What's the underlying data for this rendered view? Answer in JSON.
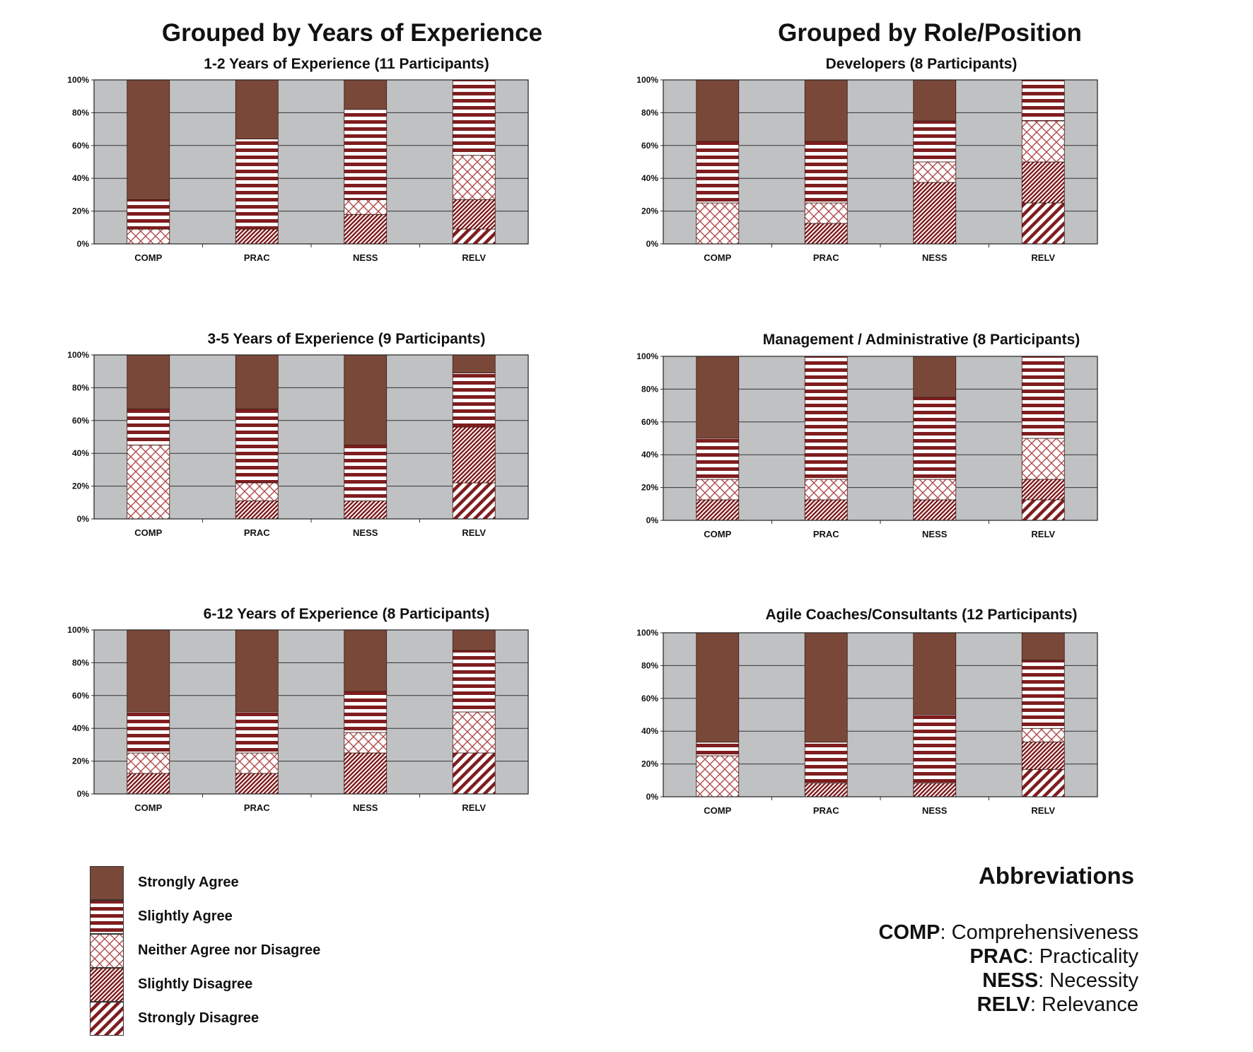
{
  "headings": {
    "left": "Grouped by Years of Experience",
    "right": "Grouped by Role/Position"
  },
  "colors": {
    "plot_bg": "#c0c1c3",
    "strongly_agree": "#7a4839",
    "pattern_dark": "#7f1d1f",
    "pattern_light": "#ffffff"
  },
  "categories": [
    "COMP",
    "PRAC",
    "NESS",
    "RELV"
  ],
  "y_ticks": [
    "0%",
    "20%",
    "40%",
    "60%",
    "80%",
    "100%"
  ],
  "legend": [
    {
      "label": "Strongly Agree",
      "key": "sa"
    },
    {
      "label": "Slightly Agree",
      "key": "slA"
    },
    {
      "label": "Neither Agree nor Disagree",
      "key": "n"
    },
    {
      "label": "Slightly Disagree",
      "key": "slD"
    },
    {
      "label": "Strongly Disagree",
      "key": "sd"
    }
  ],
  "abbreviations": {
    "title": "Abbreviations",
    "items": [
      {
        "code": "COMP",
        "meaning": ": Comprehensiveness"
      },
      {
        "code": "PRAC",
        "meaning": ": Practicality"
      },
      {
        "code": "NESS",
        "meaning": ": Necessity"
      },
      {
        "code": "RELV",
        "meaning": ": Relevance"
      }
    ]
  },
  "chart_data": [
    {
      "type": "bar",
      "stacked": true,
      "title": "1-2 Years of Experience (11 Participants)",
      "categories": [
        "COMP",
        "PRAC",
        "NESS",
        "RELV"
      ],
      "ylim": [
        0,
        100
      ],
      "grid": true,
      "series": [
        {
          "name": "Strongly Disagree",
          "values": [
            0,
            0,
            0,
            9
          ]
        },
        {
          "name": "Slightly Disagree",
          "values": [
            0,
            9,
            18,
            18
          ]
        },
        {
          "name": "Neither Agree nor Disagree",
          "values": [
            9,
            0,
            9,
            27
          ]
        },
        {
          "name": "Slightly Agree",
          "values": [
            18,
            55,
            55,
            46
          ]
        },
        {
          "name": "Strongly Agree",
          "values": [
            73,
            36,
            18,
            0
          ]
        }
      ]
    },
    {
      "type": "bar",
      "stacked": true,
      "title": "3-5 Years of Experience (9 Participants)",
      "categories": [
        "COMP",
        "PRAC",
        "NESS",
        "RELV"
      ],
      "ylim": [
        0,
        100
      ],
      "grid": true,
      "series": [
        {
          "name": "Strongly Disagree",
          "values": [
            0,
            0,
            0,
            22
          ]
        },
        {
          "name": "Slightly Disagree",
          "values": [
            0,
            11,
            11,
            34
          ]
        },
        {
          "name": "Neither Agree nor Disagree",
          "values": [
            45,
            11,
            0,
            0
          ]
        },
        {
          "name": "Slightly Agree",
          "values": [
            22,
            45,
            34,
            33
          ]
        },
        {
          "name": "Strongly Agree",
          "values": [
            33,
            33,
            55,
            11
          ]
        }
      ]
    },
    {
      "type": "bar",
      "stacked": true,
      "title": "6-12 Years of Experience (8 Participants)",
      "categories": [
        "COMP",
        "PRAC",
        "NESS",
        "RELV"
      ],
      "ylim": [
        0,
        100
      ],
      "grid": true,
      "series": [
        {
          "name": "Strongly Disagree",
          "values": [
            0,
            0,
            0,
            25
          ]
        },
        {
          "name": "Slightly Disagree",
          "values": [
            12.5,
            12.5,
            25,
            0
          ]
        },
        {
          "name": "Neither Agree nor Disagree",
          "values": [
            12.5,
            12.5,
            12.5,
            25
          ]
        },
        {
          "name": "Slightly Agree",
          "values": [
            25,
            25,
            25,
            37.5
          ]
        },
        {
          "name": "Strongly Agree",
          "values": [
            50,
            50,
            37.5,
            12.5
          ]
        }
      ]
    },
    {
      "type": "bar",
      "stacked": true,
      "title": "Developers  (8 Participants)",
      "categories": [
        "COMP",
        "PRAC",
        "NESS",
        "RELV"
      ],
      "ylim": [
        0,
        100
      ],
      "grid": true,
      "series": [
        {
          "name": "Strongly Disagree",
          "values": [
            0,
            0,
            0,
            25
          ]
        },
        {
          "name": "Slightly Disagree",
          "values": [
            0,
            12.5,
            37.5,
            25
          ]
        },
        {
          "name": "Neither Agree nor Disagree",
          "values": [
            25,
            12.5,
            12.5,
            25
          ]
        },
        {
          "name": "Slightly Agree",
          "values": [
            37.5,
            37.5,
            25,
            25
          ]
        },
        {
          "name": "Strongly Agree",
          "values": [
            37.5,
            37.5,
            25,
            0
          ]
        }
      ]
    },
    {
      "type": "bar",
      "stacked": true,
      "title": "Management / Administrative  (8 Participants)",
      "categories": [
        "COMP",
        "PRAC",
        "NESS",
        "RELV"
      ],
      "ylim": [
        0,
        100
      ],
      "grid": true,
      "series": [
        {
          "name": "Strongly Disagree",
          "values": [
            0,
            0,
            0,
            12.5
          ]
        },
        {
          "name": "Slightly Disagree",
          "values": [
            12.5,
            12.5,
            12.5,
            12.5
          ]
        },
        {
          "name": "Neither Agree nor Disagree",
          "values": [
            12.5,
            12.5,
            12.5,
            25
          ]
        },
        {
          "name": "Slightly Agree",
          "values": [
            25,
            75,
            50,
            50
          ]
        },
        {
          "name": "Strongly Agree",
          "values": [
            50,
            0,
            25,
            0
          ]
        }
      ]
    },
    {
      "type": "bar",
      "stacked": true,
      "title": "Agile Coaches/Consultants  (12 Participants)",
      "categories": [
        "COMP",
        "PRAC",
        "NESS",
        "RELV"
      ],
      "ylim": [
        0,
        100
      ],
      "grid": true,
      "series": [
        {
          "name": "Strongly Disagree",
          "values": [
            0,
            0,
            0,
            16.7
          ]
        },
        {
          "name": "Slightly Disagree",
          "values": [
            0,
            8.3,
            8.3,
            16.7
          ]
        },
        {
          "name": "Neither Agree nor Disagree",
          "values": [
            25,
            0,
            0,
            8.3
          ]
        },
        {
          "name": "Slightly Agree",
          "values": [
            8.3,
            25,
            41.7,
            41.6
          ]
        },
        {
          "name": "Strongly Agree",
          "values": [
            66.7,
            66.7,
            50,
            16.7
          ]
        }
      ]
    }
  ]
}
